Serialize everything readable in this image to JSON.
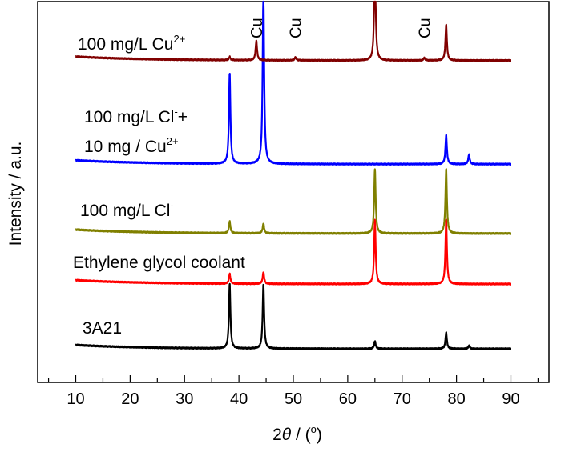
{
  "chart_data": {
    "type": "line",
    "title": "",
    "xlabel_prefix": "2",
    "xlabel_theta": "θ",
    "xlabel_suffix": " / (",
    "xlabel_degree": "o",
    "xlabel_close": ")",
    "ylabel": "Intensity / a.u.",
    "xlim": [
      3,
      97
    ],
    "x_ticks": [
      10,
      20,
      30,
      40,
      50,
      60,
      70,
      80,
      90
    ],
    "x_tick_labels": [
      "10",
      "20",
      "30",
      "40",
      "50",
      "60",
      "70",
      "80",
      "90"
    ],
    "series": [
      {
        "name": "3A21",
        "label_lines": [
          [
            "3A21",
            ""
          ]
        ],
        "color": "#000000",
        "baseline": 0.0,
        "peaks": [
          [
            38.3,
            1.0
          ],
          [
            44.5,
            1.0
          ],
          [
            65.0,
            0.12
          ],
          [
            78.1,
            0.25
          ],
          [
            82.3,
            0.05
          ]
        ]
      },
      {
        "name": "Ethylene glycol coolant",
        "label_lines": [
          [
            "Ethylene glycol coolant",
            ""
          ]
        ],
        "color": "#ff0000",
        "baseline": 1.0,
        "peaks": [
          [
            38.3,
            0.15
          ],
          [
            44.5,
            0.18
          ],
          [
            65.0,
            1.0
          ],
          [
            78.1,
            1.0
          ]
        ]
      },
      {
        "name": "100 mg/L Cl-",
        "label_lines": [
          [
            "100 mg/L Cl",
            "-"
          ]
        ],
        "color": "#808000",
        "baseline": 1.78,
        "peaks": [
          [
            38.3,
            0.18
          ],
          [
            44.5,
            0.15
          ],
          [
            65.0,
            1.0
          ],
          [
            78.1,
            1.0
          ]
        ]
      },
      {
        "name": "100 mg/L Cl- + 10 mg / Cu2+",
        "label_lines": [
          [
            "100 mg/L Cl",
            "-",
            "+"
          ],
          [
            "10 mg / Cu",
            "2+",
            ""
          ]
        ],
        "color": "#0000ff",
        "baseline": 2.85,
        "peaks": [
          [
            38.3,
            1.4
          ],
          [
            44.5,
            2.7
          ],
          [
            78.1,
            0.45
          ],
          [
            82.3,
            0.15
          ]
        ]
      },
      {
        "name": "100 mg/L Cu2+",
        "label_lines": [
          [
            "100 mg/L Cu",
            "2+",
            ""
          ]
        ],
        "color": "#800000",
        "baseline": 4.45,
        "peaks": [
          [
            38.3,
            0.05
          ],
          [
            43.2,
            0.3
          ],
          [
            50.4,
            0.05
          ],
          [
            65.0,
            1.6
          ],
          [
            74.1,
            0.04
          ],
          [
            78.1,
            0.55
          ]
        ]
      }
    ],
    "annotations": [
      {
        "text": "Cu",
        "x": 43.2
      },
      {
        "text": "Cu",
        "x": 50.4
      },
      {
        "text": "Cu",
        "x": 74.1
      }
    ]
  }
}
